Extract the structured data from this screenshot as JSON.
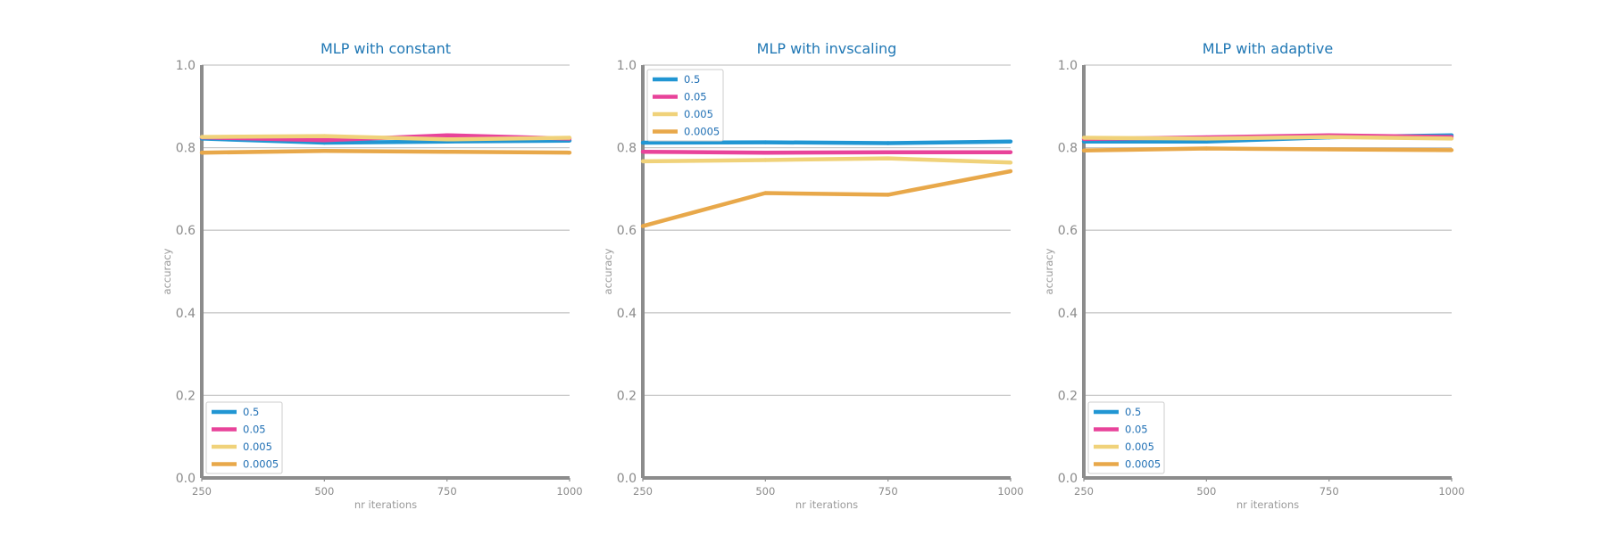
{
  "chart_data": [
    {
      "type": "line",
      "title": "MLP with constant",
      "xlabel": "nr iterations",
      "ylabel": "accuracy",
      "x": [
        250,
        500,
        750,
        1000
      ],
      "xlim": [
        250,
        1000
      ],
      "ylim": [
        0,
        1
      ],
      "yticks": [
        0.0,
        0.2,
        0.4,
        0.6,
        0.8,
        1.0
      ],
      "ytick_labels": [
        "0.0",
        "0.2",
        "0.4",
        "0.6",
        "0.8",
        "1.0"
      ],
      "xtick_labels": [
        "250",
        "500",
        "750",
        "1000"
      ],
      "grid": "horizontal",
      "legend_position": "lower-left",
      "series": [
        {
          "name": "0.5",
          "color": "#2196d3",
          "values": [
            0.822,
            0.812,
            0.815,
            0.817
          ]
        },
        {
          "name": "0.05",
          "color": "#e8439a",
          "values": [
            0.825,
            0.818,
            0.83,
            0.822
          ]
        },
        {
          "name": "0.005",
          "color": "#f0d27a",
          "values": [
            0.826,
            0.828,
            0.82,
            0.824
          ]
        },
        {
          "name": "0.0005",
          "color": "#e8a84a",
          "values": [
            0.788,
            0.792,
            0.79,
            0.788
          ]
        }
      ]
    },
    {
      "type": "line",
      "title": "MLP with invscaling",
      "xlabel": "nr iterations",
      "ylabel": "accuracy",
      "x": [
        250,
        500,
        750,
        1000
      ],
      "xlim": [
        250,
        1000
      ],
      "ylim": [
        0,
        1
      ],
      "yticks": [
        0.0,
        0.2,
        0.4,
        0.6,
        0.8,
        1.0
      ],
      "ytick_labels": [
        "0.0",
        "0.2",
        "0.4",
        "0.6",
        "0.8",
        "1.0"
      ],
      "xtick_labels": [
        "250",
        "500",
        "750",
        "1000"
      ],
      "grid": "horizontal",
      "legend_position": "upper-left",
      "series": [
        {
          "name": "0.5",
          "color": "#2196d3",
          "values": [
            0.812,
            0.813,
            0.811,
            0.815
          ]
        },
        {
          "name": "0.05",
          "color": "#e8439a",
          "values": [
            0.79,
            0.788,
            0.789,
            0.789
          ]
        },
        {
          "name": "0.005",
          "color": "#f0d27a",
          "values": [
            0.767,
            0.77,
            0.774,
            0.764
          ]
        },
        {
          "name": "0.0005",
          "color": "#e8a84a",
          "values": [
            0.61,
            0.69,
            0.686,
            0.743
          ]
        }
      ]
    },
    {
      "type": "line",
      "title": "MLP with adaptive",
      "xlabel": "nr iterations",
      "ylabel": "accuracy",
      "x": [
        250,
        500,
        750,
        1000
      ],
      "xlim": [
        250,
        1000
      ],
      "ylim": [
        0,
        1
      ],
      "yticks": [
        0.0,
        0.2,
        0.4,
        0.6,
        0.8,
        1.0
      ],
      "ytick_labels": [
        "0.0",
        "0.2",
        "0.4",
        "0.6",
        "0.8",
        "1.0"
      ],
      "xtick_labels": [
        "250",
        "500",
        "750",
        "1000"
      ],
      "grid": "horizontal",
      "legend_position": "lower-left",
      "series": [
        {
          "name": "0.5",
          "color": "#2196d3",
          "values": [
            0.815,
            0.815,
            0.825,
            0.83
          ]
        },
        {
          "name": "0.05",
          "color": "#e8439a",
          "values": [
            0.821,
            0.825,
            0.83,
            0.826
          ]
        },
        {
          "name": "0.005",
          "color": "#f0d27a",
          "values": [
            0.824,
            0.822,
            0.826,
            0.822
          ]
        },
        {
          "name": "0.0005",
          "color": "#e8a84a",
          "values": [
            0.793,
            0.798,
            0.796,
            0.794
          ]
        }
      ]
    }
  ]
}
